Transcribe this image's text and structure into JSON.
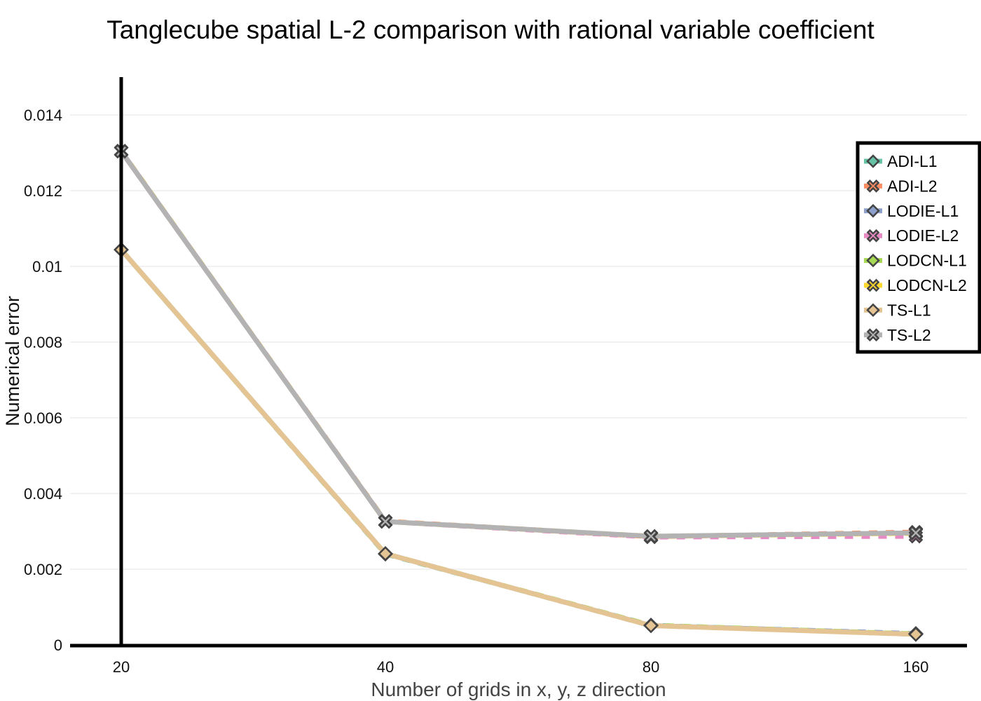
{
  "chart_data": {
    "type": "line",
    "title": "Tanglecube spatial L-2 comparison with rational variable coefficient",
    "xlabel": "Number of grids in x, y, z direction",
    "ylabel": "Numerical error",
    "categories": [
      "20",
      "40",
      "80",
      "160"
    ],
    "y_ticks": [
      "0",
      "0.002",
      "0.004",
      "0.006",
      "0.008",
      "0.01",
      "0.012",
      "0.014"
    ],
    "ylim": [
      0,
      0.015
    ],
    "grid": true,
    "legend_position": "top-right",
    "series": [
      {
        "name": "ADI-L1",
        "values": [
          0.01044,
          0.0024,
          0.00052,
          0.00028
        ],
        "color": "#66c2a5",
        "marker": "diamond"
      },
      {
        "name": "ADI-L2",
        "values": [
          0.01304,
          0.00327,
          0.00286,
          0.00298
        ],
        "color": "#fc8d62",
        "marker": "x"
      },
      {
        "name": "LODIE-L1",
        "values": [
          0.01044,
          0.00241,
          0.00051,
          0.0003
        ],
        "color": "#8da0cb",
        "marker": "diamond"
      },
      {
        "name": "LODIE-L2",
        "values": [
          0.01304,
          0.00326,
          0.00285,
          0.00287
        ],
        "color": "#e78ac3",
        "marker": "x"
      },
      {
        "name": "LODCN-L1",
        "values": [
          0.01044,
          0.00241,
          0.00052,
          0.00029
        ],
        "color": "#a6d854",
        "marker": "diamond"
      },
      {
        "name": "LODCN-L2",
        "values": [
          0.01305,
          0.00326,
          0.00287,
          0.00295
        ],
        "color": "#ffd92f",
        "marker": "x"
      },
      {
        "name": "TS-L1",
        "values": [
          0.01044,
          0.00241,
          0.00051,
          0.00028
        ],
        "color": "#e5c494",
        "marker": "diamond"
      },
      {
        "name": "TS-L2",
        "values": [
          0.01304,
          0.00326,
          0.00287,
          0.00296
        ],
        "color": "#b3b3b3",
        "marker": "x"
      }
    ]
  }
}
